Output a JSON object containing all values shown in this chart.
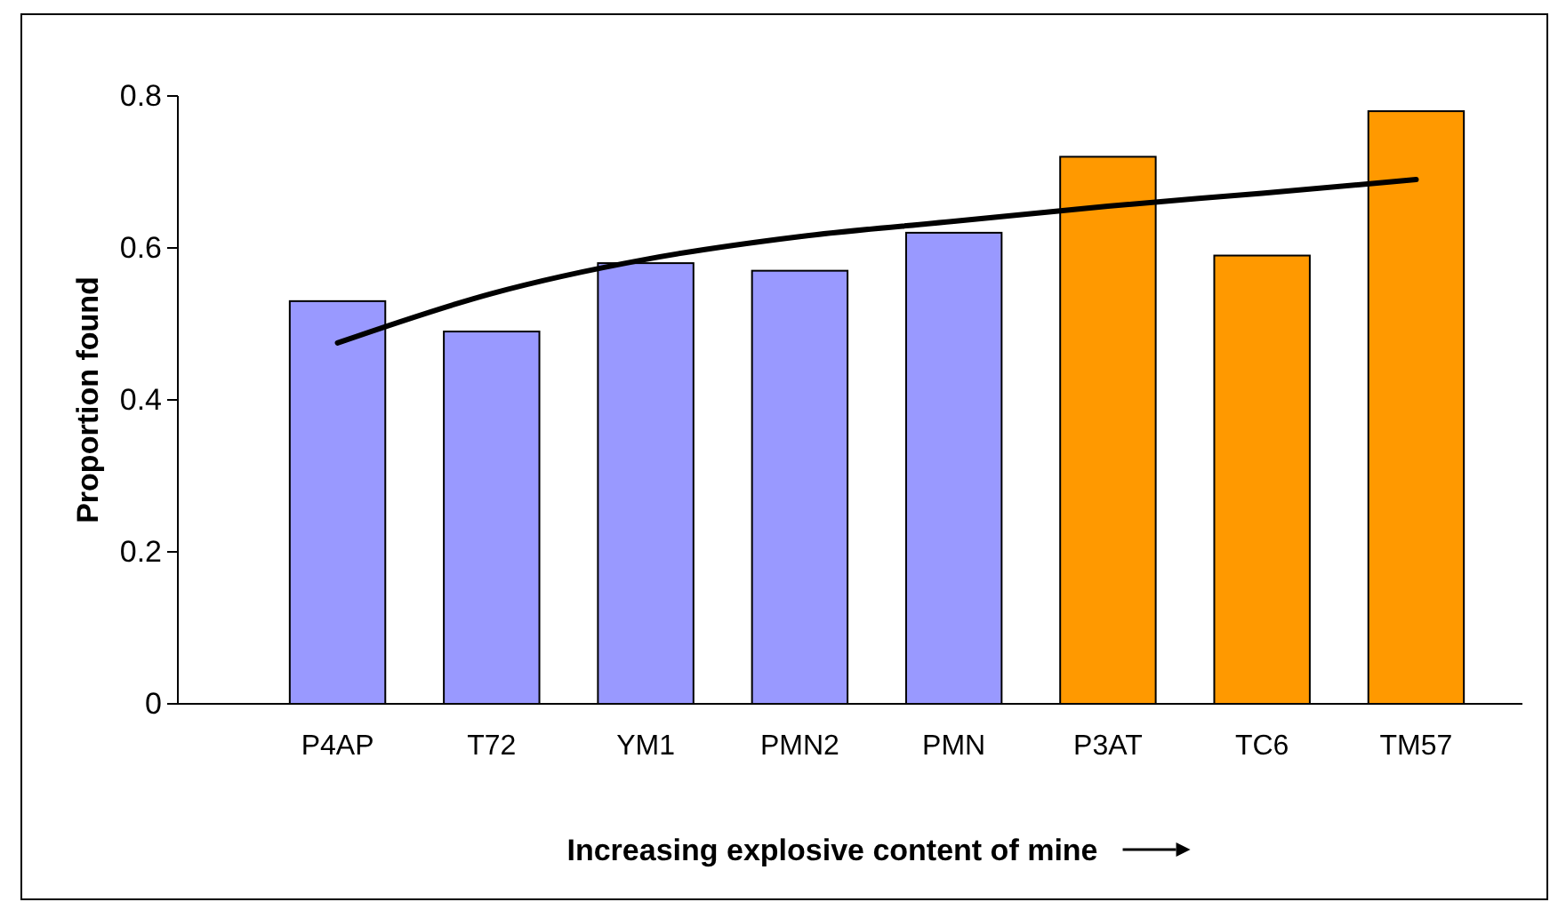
{
  "chart_data": {
    "type": "bar",
    "xlabel": "Increasing explosive content of mine",
    "ylabel": "Proportion found",
    "categories": [
      "P4AP",
      "T72",
      "YM1",
      "PMN2",
      "PMN",
      "P3AT",
      "TC6",
      "TM57"
    ],
    "series": [
      {
        "values": [
          0.53,
          0.49,
          0.58,
          0.57,
          0.62,
          0.72,
          0.59,
          0.78
        ],
        "colors": [
          "#9999ff",
          "#9999ff",
          "#9999ff",
          "#9999ff",
          "#9999ff",
          "#ff9900",
          "#ff9900",
          "#ff9900"
        ]
      },
      {
        "type": "line",
        "color": "#000000",
        "x": [
          "P4AP",
          "T72",
          "YM1",
          "PMN2",
          "PMN",
          "P3AT",
          "TC6",
          "TM57"
        ],
        "values": [
          0.475,
          0.54,
          0.585,
          0.615,
          0.635,
          0.655,
          0.672,
          0.69
        ]
      }
    ],
    "ylim": [
      0,
      0.8
    ],
    "yticks": [
      0,
      0.2,
      0.4,
      0.6,
      0.8
    ],
    "grid": false
  }
}
